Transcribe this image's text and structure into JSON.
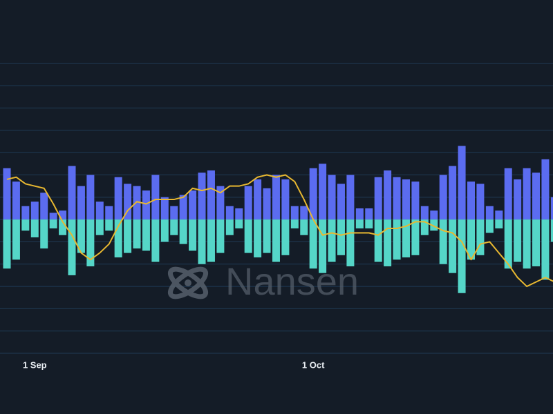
{
  "chart_data": {
    "type": "bar",
    "categories": [
      null,
      null,
      null,
      "1 Sep",
      null,
      null,
      null,
      null,
      null,
      null,
      null,
      null,
      null,
      null,
      null,
      null,
      null,
      null,
      null,
      null,
      null,
      null,
      null,
      null,
      null,
      null,
      null,
      null,
      null,
      null,
      null,
      null,
      null,
      "1 Oct",
      null,
      null,
      null,
      null,
      null,
      null,
      null,
      null,
      null,
      null,
      null,
      null,
      null,
      null,
      null,
      null,
      null,
      null,
      null,
      null,
      null,
      null,
      null,
      null,
      null,
      null
    ],
    "series": [
      {
        "type": "bar",
        "color": "#5b6cf0",
        "values": [
          2.3,
          1.7,
          0.6,
          0.8,
          1.2,
          0.3,
          0.4,
          2.4,
          1.5,
          2.0,
          0.8,
          0.6,
          1.9,
          1.6,
          1.5,
          1.3,
          2.0,
          1.0,
          0.6,
          1.1,
          1.3,
          2.1,
          2.2,
          1.5,
          0.6,
          0.5,
          1.5,
          1.8,
          1.4,
          2.0,
          1.8,
          0.6,
          0.6,
          2.3,
          2.5,
          2.0,
          1.6,
          2.0,
          0.5,
          0.5,
          1.9,
          2.2,
          1.9,
          1.8,
          1.7,
          0.6,
          0.4,
          2.0,
          2.4,
          3.3,
          1.7,
          1.6,
          0.6,
          0.4,
          2.3,
          1.8,
          2.3,
          2.1,
          2.7,
          1.0
        ]
      },
      {
        "type": "bar",
        "color": "#55d6c8",
        "values": [
          -2.2,
          -1.8,
          -0.5,
          -0.8,
          -1.3,
          -0.4,
          -0.7,
          -2.5,
          -1.5,
          -2.1,
          -0.7,
          -0.5,
          -1.7,
          -1.5,
          -1.3,
          -1.4,
          -1.9,
          -1.0,
          -0.7,
          -1.1,
          -1.4,
          -2.0,
          -1.9,
          -1.5,
          -0.7,
          -0.4,
          -1.5,
          -1.7,
          -1.5,
          -1.9,
          -1.6,
          -0.4,
          -0.7,
          -2.2,
          -2.4,
          -1.9,
          -1.6,
          -2.1,
          -0.4,
          -0.4,
          -1.9,
          -2.1,
          -1.8,
          -1.7,
          -1.6,
          -0.7,
          -0.5,
          -2.0,
          -2.4,
          -3.3,
          -1.8,
          -1.6,
          -0.6,
          -0.4,
          -2.2,
          -1.9,
          -2.2,
          -2.1,
          -2.7,
          -1.0
        ]
      },
      {
        "type": "line",
        "color": "#e8b830",
        "values": [
          1.8,
          1.9,
          1.6,
          1.5,
          1.4,
          0.7,
          -0.1,
          -0.7,
          -1.5,
          -1.8,
          -1.5,
          -1.1,
          -0.3,
          0.4,
          0.8,
          0.7,
          0.9,
          0.9,
          0.9,
          1.0,
          1.4,
          1.3,
          1.4,
          1.2,
          1.5,
          1.5,
          1.6,
          1.9,
          2.0,
          1.9,
          2.0,
          1.7,
          0.9,
          0.0,
          -0.7,
          -0.6,
          -0.7,
          -0.6,
          -0.6,
          -0.6,
          -0.7,
          -0.4,
          -0.4,
          -0.3,
          -0.1,
          -0.1,
          -0.3,
          -0.5,
          -0.6,
          -1.0,
          -1.8,
          -1.1,
          -1.0,
          -1.5,
          -2.0,
          -2.6,
          -3.0,
          -2.8,
          -2.6,
          -2.8
        ]
      }
    ],
    "ylim": [
      -6,
      10
    ],
    "yticks": [
      -6,
      -5,
      -4,
      -3,
      -2,
      -1,
      0,
      1,
      2,
      3,
      4,
      5,
      6,
      7
    ],
    "grid": true,
    "grid_color": "#1f3a55",
    "watermark": "Nansen"
  }
}
